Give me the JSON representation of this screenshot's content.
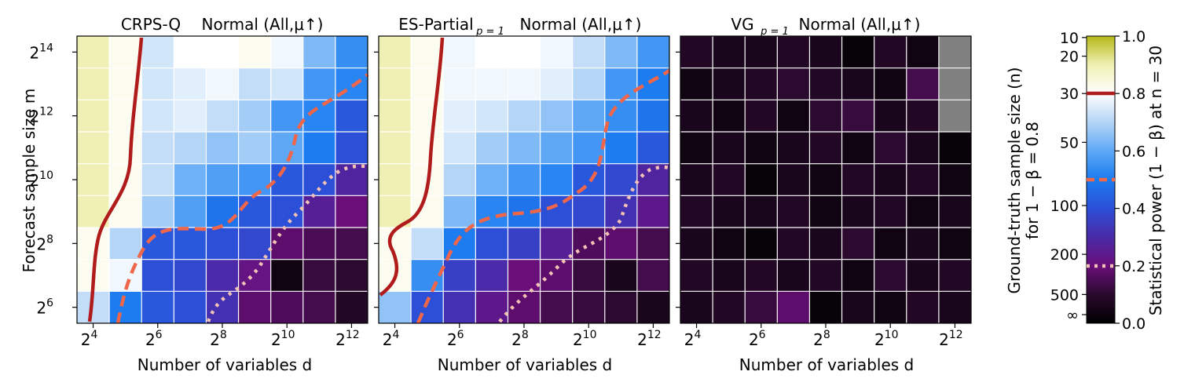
{
  "colors": {
    "contour_80": "#b01c1c",
    "contour_50": "#f0664a",
    "contour_20": "#f2c2b6",
    "grid": "#ffffff",
    "nan": "#808080"
  },
  "colorbar": {
    "left_ticks": [
      "10",
      "20",
      "30",
      "50",
      "100",
      "200",
      "500",
      "∞"
    ],
    "right_ticks": [
      "1.0",
      "0.8",
      "0.6",
      "0.4",
      "0.2",
      "0.0"
    ],
    "left_label_line1": "Ground-truth sample size (n)",
    "left_label_line2": "for 1 − β = 0.8",
    "right_label": "Statistical power (1 − β) at n = 30"
  },
  "shared_axes": {
    "ylabel": "Forecast sample size m",
    "xlabel": "Number of variables d",
    "x_tick_exponents": [
      "4",
      "6",
      "8",
      "10",
      "12"
    ],
    "y_tick_exponents": [
      "6",
      "8",
      "10",
      "12",
      "14"
    ]
  },
  "chart_data": [
    {
      "type": "heatmap",
      "title_metric": "CRPS-Q",
      "title_sub": "",
      "title_rest": "Normal (All,μ↑)",
      "x": [
        16,
        32,
        64,
        128,
        256,
        512,
        1024,
        2048,
        4096
      ],
      "y": [
        64,
        128,
        256,
        512,
        1024,
        2048,
        4096,
        8192,
        16384
      ],
      "values": [
        [
          0.72,
          0.5,
          0.42,
          0.4,
          0.32,
          0.18,
          0.16,
          0.14,
          0.08
        ],
        [
          0.82,
          0.78,
          0.4,
          0.38,
          0.3,
          0.22,
          0.04,
          0.12,
          0.1
        ],
        [
          0.82,
          0.7,
          0.42,
          0.42,
          0.4,
          0.38,
          0.18,
          0.15,
          0.14
        ],
        [
          0.9,
          0.82,
          0.68,
          0.58,
          0.48,
          0.42,
          0.4,
          0.26,
          0.2
        ],
        [
          0.9,
          0.82,
          0.72,
          0.62,
          0.58,
          0.56,
          0.42,
          0.4,
          0.28
        ],
        [
          0.9,
          0.82,
          0.72,
          0.7,
          0.66,
          0.68,
          0.6,
          0.5,
          0.4
        ],
        [
          0.9,
          0.82,
          0.74,
          0.76,
          0.72,
          0.68,
          0.56,
          0.52,
          0.42
        ],
        [
          0.9,
          0.82,
          0.74,
          0.76,
          0.78,
          0.72,
          0.74,
          0.56,
          0.52
        ],
        [
          0.9,
          0.82,
          0.74,
          0.8,
          0.8,
          0.82,
          0.78,
          0.64,
          0.54
        ]
      ]
    },
    {
      "type": "heatmap",
      "title_metric": "ES-Partial",
      "title_sub": "p = 1",
      "title_rest": "Normal (All,μ↑)",
      "x": [
        16,
        32,
        64,
        128,
        256,
        512,
        1024,
        2048,
        4096
      ],
      "y": [
        64,
        128,
        256,
        512,
        1024,
        2048,
        4096,
        8192,
        16384
      ],
      "values": [
        [
          0.66,
          0.4,
          0.32,
          0.24,
          0.18,
          0.14,
          0.12,
          0.1,
          0.06
        ],
        [
          0.82,
          0.54,
          0.36,
          0.3,
          0.2,
          0.18,
          0.12,
          0.06,
          0.14
        ],
        [
          0.82,
          0.72,
          0.5,
          0.4,
          0.36,
          0.26,
          0.16,
          0.18,
          0.14
        ],
        [
          0.9,
          0.82,
          0.64,
          0.52,
          0.48,
          0.4,
          0.38,
          0.32,
          0.24
        ],
        [
          0.9,
          0.82,
          0.7,
          0.62,
          0.56,
          0.52,
          0.42,
          0.38,
          0.28
        ],
        [
          0.9,
          0.82,
          0.74,
          0.68,
          0.64,
          0.6,
          0.56,
          0.5,
          0.42
        ],
        [
          0.9,
          0.82,
          0.76,
          0.74,
          0.7,
          0.66,
          0.6,
          0.54,
          0.48
        ],
        [
          0.9,
          0.82,
          0.78,
          0.78,
          0.78,
          0.76,
          0.7,
          0.56,
          0.5
        ],
        [
          0.9,
          0.82,
          0.78,
          0.8,
          0.8,
          0.78,
          0.72,
          0.64,
          0.56
        ]
      ]
    },
    {
      "type": "heatmap",
      "title_metric": "VG",
      "title_sub": "p = 1",
      "title_rest": "Normal (All,μ↑)",
      "x": [
        16,
        32,
        64,
        128,
        256,
        512,
        1024,
        2048,
        4096
      ],
      "y": [
        64,
        128,
        256,
        512,
        1024,
        2048,
        4096,
        8192,
        16384
      ],
      "values": [
        [
          0.06,
          0.08,
          0.12,
          0.18,
          0.02,
          0.06,
          0.04,
          0.08,
          0.06
        ],
        [
          0.08,
          0.06,
          0.08,
          0.06,
          0.08,
          0.04,
          0.1,
          0.06,
          0.08
        ],
        [
          0.06,
          0.04,
          0.02,
          0.08,
          0.06,
          0.1,
          0.04,
          0.06,
          0.04
        ],
        [
          0.08,
          0.06,
          0.06,
          0.08,
          0.04,
          0.06,
          0.08,
          0.04,
          0.06
        ],
        [
          0.06,
          0.08,
          0.02,
          0.06,
          0.04,
          0.08,
          0.06,
          0.08,
          0.04
        ],
        [
          0.04,
          0.06,
          0.04,
          0.06,
          0.08,
          0.04,
          0.1,
          0.06,
          0.02
        ],
        [
          0.06,
          0.04,
          0.08,
          0.04,
          0.1,
          0.12,
          0.06,
          0.08,
          null
        ],
        [
          0.04,
          0.06,
          0.08,
          0.1,
          0.08,
          0.06,
          0.04,
          0.14,
          null
        ],
        [
          0.08,
          0.06,
          0.06,
          0.08,
          0.06,
          0.02,
          0.08,
          0.04,
          null
        ]
      ]
    }
  ]
}
